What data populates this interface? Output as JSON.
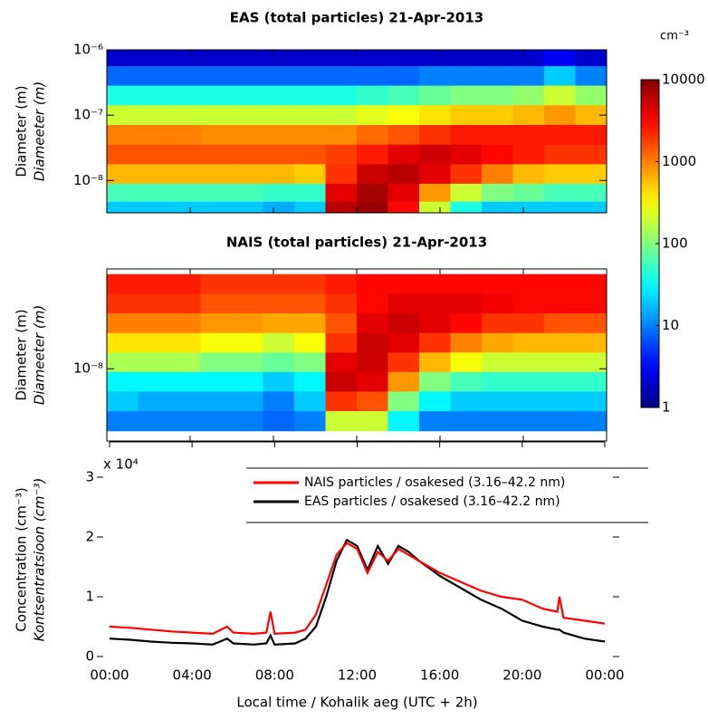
{
  "chart_data": [
    {
      "type": "heatmap",
      "title": "EAS (total particles) 21-Apr-2013",
      "ylabel": "Diameter (m)",
      "ylabel_et": "Diameeter (m)",
      "xlim": [
        0,
        24
      ],
      "xticks": [
        0,
        4,
        8,
        12,
        16,
        20,
        24
      ],
      "ylim": [
        3.2e-09,
        1e-06
      ],
      "yscale": "log",
      "yticks": [
        {
          "value": 1e-06,
          "label": "10⁻⁶"
        },
        {
          "value": 1e-07,
          "label": "10⁻⁷"
        },
        {
          "value": 1e-08,
          "label": "10⁻⁸"
        }
      ],
      "times": [
        0.75,
        2.25,
        3.75,
        5.25,
        6.75,
        8.25,
        9.75,
        11.25,
        12.75,
        14.25,
        15.75,
        17.25,
        18.75,
        20.25,
        21.75,
        23.25
      ],
      "diameters": [
        7.9e-07,
        4e-07,
        2e-07,
        1e-07,
        5e-08,
        2.5e-08,
        1.26e-08,
        6.3e-09,
        3.55e-09
      ],
      "values": [
        [
          2,
          2,
          2,
          2,
          2,
          2,
          2,
          2,
          2,
          2,
          2,
          2,
          2,
          2,
          3,
          2
        ],
        [
          8,
          8,
          8,
          8,
          8,
          8,
          8,
          8,
          8,
          8,
          10,
          10,
          10,
          10,
          20,
          10
        ],
        [
          40,
          40,
          40,
          40,
          40,
          40,
          40,
          40,
          50,
          60,
          80,
          100,
          100,
          120,
          200,
          120
        ],
        [
          200,
          200,
          200,
          200,
          200,
          200,
          200,
          200,
          250,
          300,
          400,
          500,
          500,
          600,
          800,
          600
        ],
        [
          1000,
          1000,
          1000,
          900,
          900,
          900,
          900,
          900,
          1200,
          1500,
          2000,
          2500,
          2500,
          2500,
          2500,
          2500
        ],
        [
          1500,
          1500,
          1500,
          1500,
          1500,
          1500,
          1500,
          1800,
          2500,
          4000,
          5000,
          4000,
          3000,
          2500,
          2000,
          2000
        ],
        [
          600,
          600,
          600,
          600,
          600,
          600,
          500,
          2000,
          5000,
          6000,
          4000,
          2000,
          1000,
          600,
          500,
          500
        ],
        [
          60,
          60,
          60,
          60,
          60,
          50,
          50,
          4000,
          7000,
          4000,
          800,
          200,
          100,
          80,
          60,
          60
        ],
        [
          20,
          20,
          20,
          20,
          20,
          15,
          20,
          6000,
          8000,
          3000,
          200,
          40,
          20,
          20,
          20,
          20
        ]
      ],
      "colormap": "jet",
      "colorbar": {
        "label": "cm⁻³",
        "lim": [
          1,
          10000
        ],
        "ticks": [
          1,
          10,
          100,
          1000,
          10000
        ],
        "scale": "log"
      }
    },
    {
      "type": "heatmap",
      "title": "NAIS (total particles) 21-Apr-2013",
      "ylabel": "Diameter (m)",
      "ylabel_et": "Diameeter (m)",
      "xlim": [
        0,
        24
      ],
      "xticks": [
        0,
        4,
        8,
        12,
        16,
        20,
        24
      ],
      "ylim": [
        7.8e-10,
        3.4e-07
      ],
      "yscale": "log",
      "yticks": [
        {
          "value": 1e-08,
          "label": "10⁻⁸"
        }
      ],
      "times": [
        0.75,
        2.25,
        3.75,
        5.25,
        6.75,
        8.25,
        9.75,
        11.25,
        12.75,
        14.25,
        15.75,
        17.25,
        18.75,
        20.25,
        21.75,
        23.25
      ],
      "diameters": [
        2e-07,
        1e-07,
        5e-08,
        2.5e-08,
        1.26e-08,
        6.3e-09,
        3.16e-09,
        1.58e-09
      ],
      "values": [
        [
          2500,
          2500,
          2500,
          2000,
          2000,
          2000,
          2000,
          2500,
          3000,
          3000,
          3000,
          3000,
          3000,
          3000,
          3000,
          3000
        ],
        [
          2000,
          2000,
          2000,
          1500,
          1500,
          1500,
          1500,
          2000,
          3000,
          4000,
          4000,
          4000,
          3500,
          3000,
          3000,
          3000
        ],
        [
          1000,
          1000,
          1000,
          800,
          800,
          700,
          700,
          1500,
          4000,
          5000,
          4000,
          3000,
          2000,
          2000,
          1500,
          1500
        ],
        [
          400,
          400,
          400,
          300,
          300,
          200,
          300,
          2000,
          5000,
          4000,
          2000,
          1000,
          700,
          600,
          600,
          600
        ],
        [
          150,
          150,
          150,
          100,
          100,
          80,
          100,
          4000,
          5000,
          2000,
          600,
          300,
          200,
          200,
          200,
          200
        ],
        [
          30,
          30,
          30,
          30,
          30,
          20,
          30,
          5000,
          4000,
          800,
          100,
          60,
          50,
          50,
          50,
          50
        ],
        [
          20,
          15,
          15,
          15,
          15,
          10,
          20,
          2000,
          1500,
          100,
          30,
          20,
          20,
          20,
          20,
          20
        ],
        [
          10,
          10,
          10,
          10,
          10,
          8,
          10,
          200,
          200,
          30,
          10,
          10,
          10,
          10,
          10,
          10
        ]
      ],
      "colormap": "jet",
      "clim": [
        1,
        10000
      ]
    },
    {
      "type": "line",
      "ylabel": "Concentration (cm⁻³)",
      "ylabel_et": "Kontsentratsioon (cm⁻³)",
      "xlabel": "Local time / Kohalik aeg (UTC + 2h)",
      "y_multiplier": "x 10⁴",
      "xlim": [
        0,
        24
      ],
      "xticks": [
        {
          "value": 0,
          "label": "00:00"
        },
        {
          "value": 4,
          "label": "04:00"
        },
        {
          "value": 8,
          "label": "08:00"
        },
        {
          "value": 12,
          "label": "12:00"
        },
        {
          "value": 16,
          "label": "16:00"
        },
        {
          "value": 20,
          "label": "20:00"
        },
        {
          "value": 24,
          "label": "00:00"
        }
      ],
      "ylim": [
        0,
        3
      ],
      "yticks": [
        0,
        1,
        2,
        3
      ],
      "legend": "upper right",
      "x": [
        0,
        1,
        2,
        3,
        4,
        5,
        5.7,
        6,
        7,
        7.6,
        7.8,
        8,
        9,
        9.5,
        10,
        10.5,
        11,
        11.5,
        12,
        12.5,
        13,
        13.5,
        14,
        14.5,
        15,
        16,
        17,
        18,
        19,
        20,
        21,
        21.7,
        21.8,
        22,
        23,
        24
      ],
      "series": [
        {
          "name": "NAIS particles / osakesed (3.16–42.2 nm)",
          "color": "#ff0000",
          "values": [
            0.5,
            0.48,
            0.45,
            0.42,
            0.4,
            0.38,
            0.5,
            0.4,
            0.38,
            0.4,
            0.75,
            0.38,
            0.4,
            0.45,
            0.7,
            1.2,
            1.7,
            1.9,
            1.8,
            1.4,
            1.75,
            1.6,
            1.8,
            1.7,
            1.6,
            1.4,
            1.25,
            1.1,
            1.0,
            0.95,
            0.8,
            0.75,
            1.0,
            0.65,
            0.6,
            0.55
          ]
        },
        {
          "name": "EAS particles / osakesed (3.16–42.2 nm)",
          "color": "#000000",
          "values": [
            0.3,
            0.28,
            0.25,
            0.23,
            0.22,
            0.2,
            0.3,
            0.22,
            0.2,
            0.22,
            0.35,
            0.2,
            0.22,
            0.3,
            0.5,
            1.0,
            1.6,
            1.95,
            1.85,
            1.45,
            1.85,
            1.55,
            1.85,
            1.75,
            1.6,
            1.35,
            1.15,
            0.95,
            0.8,
            0.6,
            0.5,
            0.45,
            0.45,
            0.4,
            0.3,
            0.25
          ]
        }
      ]
    }
  ]
}
